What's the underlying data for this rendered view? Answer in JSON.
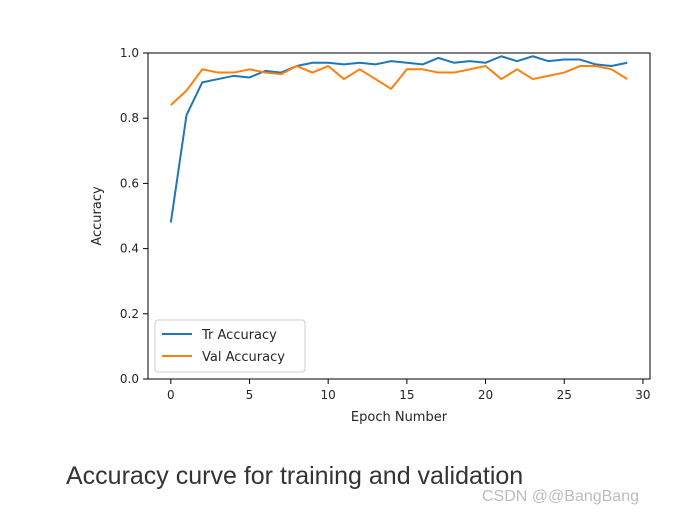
{
  "chart_data": {
    "type": "line",
    "title": "",
    "xlabel": "Epoch Number",
    "ylabel": "Accuracy",
    "xlim": [
      -1.45,
      30.45
    ],
    "ylim": [
      0.0,
      1.0
    ],
    "xticks": [
      0,
      5,
      10,
      15,
      20,
      25,
      30
    ],
    "yticks": [
      0.0,
      0.2,
      0.4,
      0.6,
      0.8,
      1.0
    ],
    "xtick_labels": [
      "0",
      "5",
      "10",
      "15",
      "20",
      "25",
      "30"
    ],
    "ytick_labels": [
      "0.0",
      "0.2",
      "0.4",
      "0.6",
      "0.8",
      "1.0"
    ],
    "grid": false,
    "legend_position": "lower-left",
    "x": [
      0,
      1,
      2,
      3,
      4,
      5,
      6,
      7,
      8,
      9,
      10,
      11,
      12,
      13,
      14,
      15,
      16,
      17,
      18,
      19,
      20,
      21,
      22,
      23,
      24,
      25,
      26,
      27,
      28,
      29
    ],
    "series": [
      {
        "name": "Tr Accuracy",
        "color": "#1f77b4",
        "values": [
          0.48,
          0.81,
          0.91,
          0.92,
          0.93,
          0.925,
          0.945,
          0.94,
          0.96,
          0.97,
          0.97,
          0.965,
          0.97,
          0.965,
          0.975,
          0.97,
          0.965,
          0.985,
          0.97,
          0.975,
          0.97,
          0.99,
          0.975,
          0.99,
          0.975,
          0.98,
          0.98,
          0.965,
          0.96,
          0.97
        ]
      },
      {
        "name": "Val Accuracy",
        "color": "#ff7f0e",
        "values": [
          0.84,
          0.885,
          0.95,
          0.94,
          0.94,
          0.95,
          0.94,
          0.935,
          0.96,
          0.94,
          0.96,
          0.92,
          0.95,
          0.92,
          0.89,
          0.95,
          0.95,
          0.94,
          0.94,
          0.95,
          0.96,
          0.92,
          0.95,
          0.92,
          0.93,
          0.94,
          0.96,
          0.96,
          0.95,
          0.92
        ]
      }
    ]
  },
  "caption": "Accuracy curve for training and validation",
  "watermark": "CSDN @@BangBang"
}
